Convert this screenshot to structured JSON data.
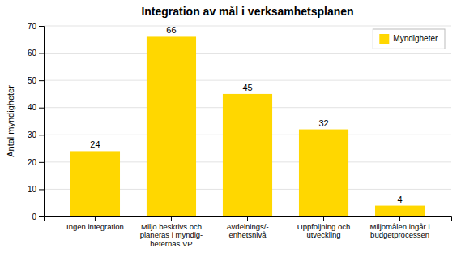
{
  "chart_data": {
    "type": "bar",
    "title": "Integration av mål i verksamhetsplanen",
    "categories": [
      "Ingen integration",
      "Miljö beskrivs och\nplaneras i myndig-\nheternas VP",
      "Avdelnings/-\nenhetsnivå",
      "Uppföljning och\nutveckling",
      "Miljömålen ingår i\nbudgetprocessen"
    ],
    "series": [
      {
        "name": "Myndigheter",
        "color": "#FFD700",
        "values": [
          24,
          66,
          45,
          32,
          4
        ]
      }
    ],
    "ylabel": "Antal myndigheter",
    "ylim": [
      0,
      70
    ],
    "yticks": [
      0,
      10,
      20,
      30,
      40,
      50,
      60,
      70
    ],
    "grid": true,
    "legend": "upper right",
    "data_labels": true
  }
}
